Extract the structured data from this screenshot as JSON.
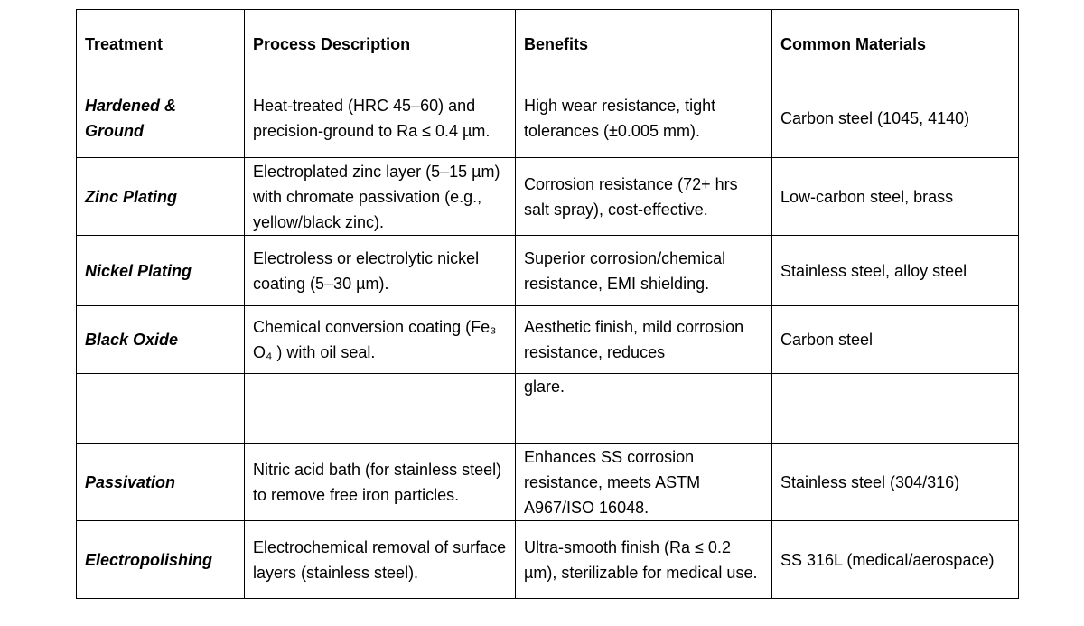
{
  "table": {
    "header": [
      "Treatment",
      "Process Description",
      "Benefits",
      "Common Materials"
    ],
    "rows": [
      {
        "treatment": "Hardened & Ground",
        "process": "Heat-treated (HRC 45–60) and precision-ground to Ra ≤ 0.4 µm.",
        "benefits": "High wear resistance, tight tolerances (±0.005 mm).",
        "materials": "Carbon steel (1045, 4140)"
      },
      {
        "treatment": "Zinc Plating",
        "process": "Electroplated zinc layer (5–15 µm) with chromate passivation (e.g., yellow/black zinc).",
        "benefits": "Corrosion resistance (72+ hrs salt spray), cost-effective.",
        "materials": "Low-carbon steel, brass"
      },
      {
        "treatment": "Nickel Plating",
        "process": "Electroless or electrolytic nickel coating (5–30 µm).",
        "benefits": "Superior corrosion/chemical resistance, EMI shielding.",
        "materials": "Stainless steel, alloy steel"
      },
      {
        "treatment": "Black Oxide",
        "process": "Chemical conversion coating (Fe₃ O₄ ) with oil seal.",
        "benefits": "Aesthetic finish, mild corrosion resistance, reduces",
        "materials": "Carbon steel"
      },
      {
        "benefits": "glare."
      },
      {
        "treatment": "Passivation",
        "process": "Nitric acid bath (for stainless steel) to remove free iron particles.",
        "benefits": "Enhances SS corrosion resistance, meets ASTM A967/ISO 16048.",
        "materials": "Stainless steel (304/316)"
      },
      {
        "treatment": "Electropolishing",
        "process": "Electrochemical removal of surface layers (stainless steel).",
        "benefits": "Ultra-smooth finish (Ra ≤ 0.2 µm), sterilizable for medical use.",
        "materials": "SS 316L (medical/aerospace)"
      }
    ]
  }
}
